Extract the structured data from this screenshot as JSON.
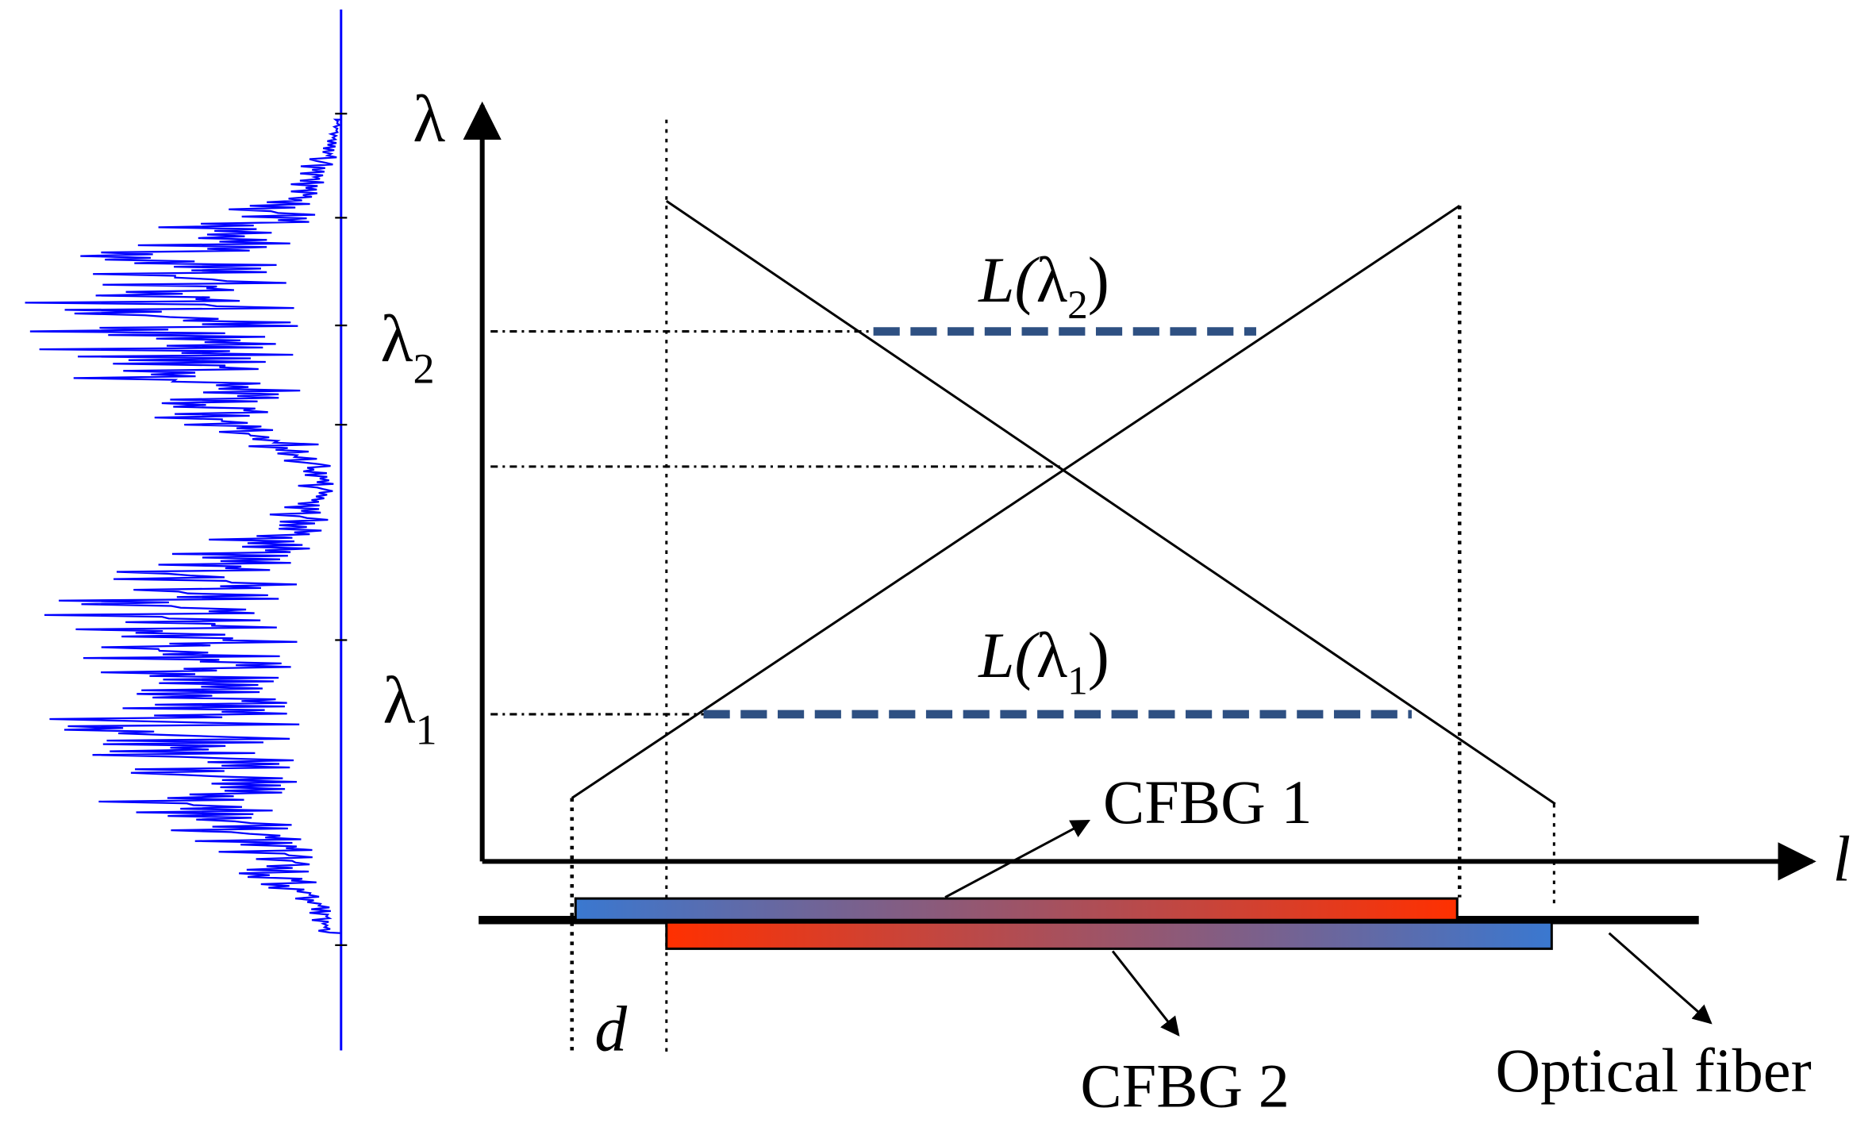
{
  "axes": {
    "y_label": "λ",
    "x_label": "l"
  },
  "levels": {
    "lambda_2": {
      "base": "λ",
      "sub": "2"
    },
    "lambda_1": {
      "base": "λ",
      "sub": "1"
    }
  },
  "lengths": {
    "L_lambda_2": {
      "prefix": "L(",
      "base": "λ",
      "sub": "2",
      "suffix": ")"
    },
    "L_lambda_1": {
      "prefix": "L(",
      "base": "λ",
      "sub": "1",
      "suffix": ")"
    }
  },
  "labels": {
    "cfbg1": "CFBG 1",
    "cfbg2": "CFBG 2",
    "fiber": "Optical fiber",
    "offset": "d"
  }
}
